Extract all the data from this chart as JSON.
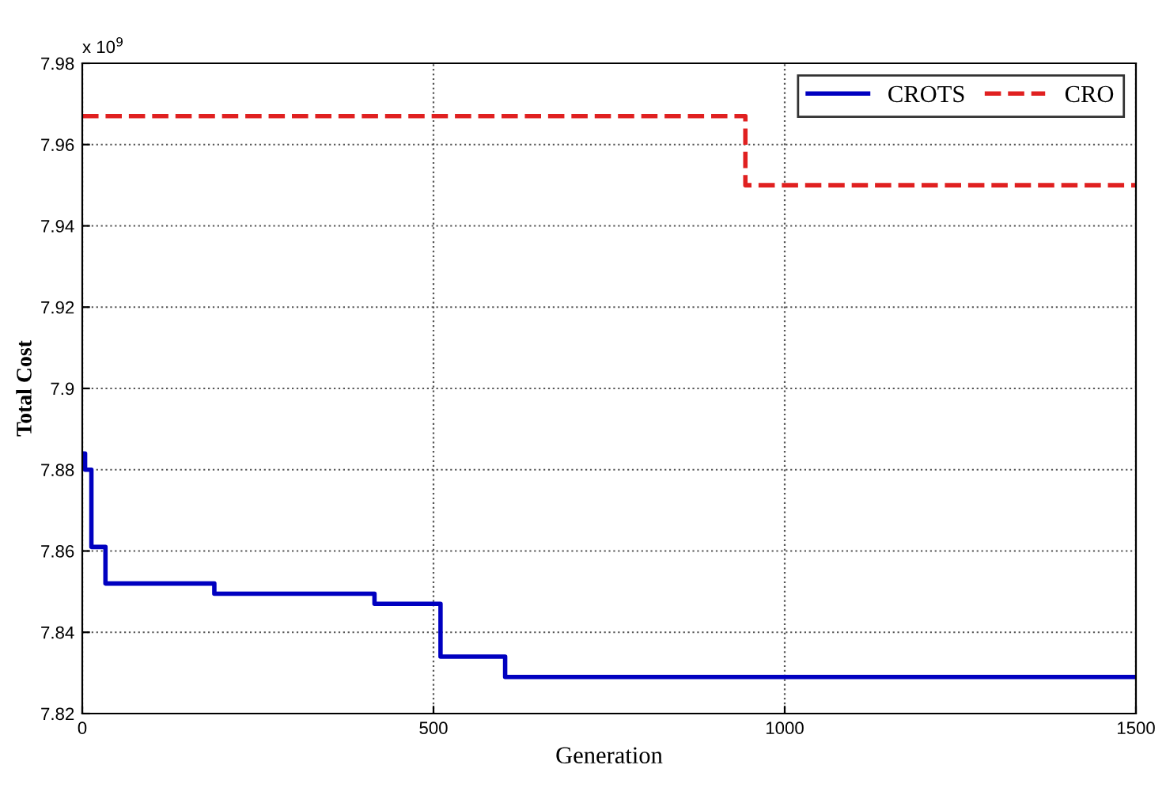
{
  "chart_data": {
    "type": "step",
    "xlabel": "Generation",
    "ylabel": "Total Cost",
    "annotations": [
      "x 10$^{9}$"
    ],
    "series": [
      {
        "name": "CROTS",
        "color": "#0000c0",
        "line_style": "solid",
        "x": [
          0,
          4,
          13,
          33,
          188,
          416,
          510,
          602,
          1500
        ],
        "values": [
          7.884,
          7.88,
          7.861,
          7.852,
          7.8495,
          7.847,
          7.834,
          7.829,
          7.829
        ]
      },
      {
        "name": "CRO",
        "color": "#e02020",
        "line_style": "dashed",
        "x": [
          0,
          944,
          1500
        ],
        "values": [
          7.967,
          7.95,
          7.95
        ]
      }
    ],
    "xlim": [
      0,
      1500
    ],
    "xticks": [
      0,
      500,
      1000,
      1500
    ],
    "ylim": [
      7.82,
      7.98
    ],
    "yticks": [
      7.82,
      7.84,
      7.86,
      7.88,
      {
        "value": 7.9,
        "label": "7.9"
      },
      7.92,
      7.94,
      7.96,
      7.98
    ],
    "grid": true,
    "legend": "top right",
    "marker": "none"
  }
}
